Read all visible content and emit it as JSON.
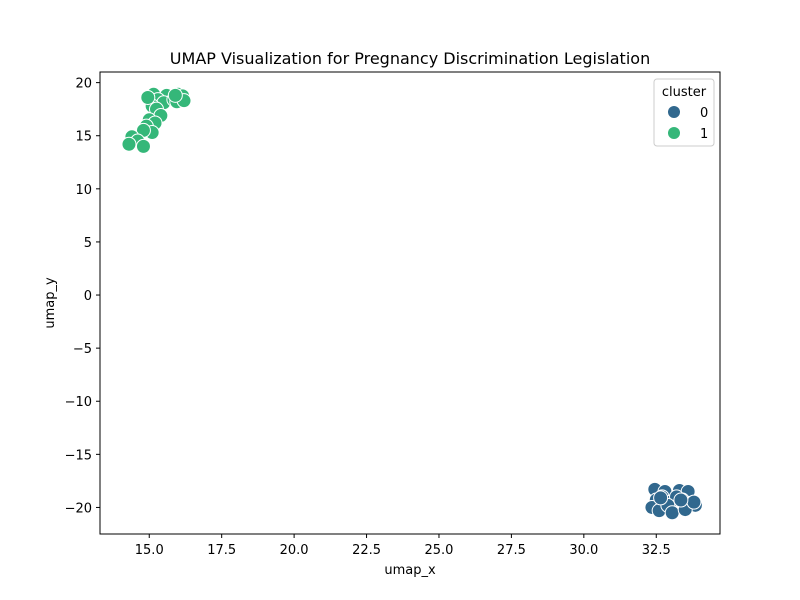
{
  "chart_data": {
    "type": "scatter",
    "title": "UMAP Visualization for Pregnancy Discrimination Legislation",
    "xlabel": "umap_x",
    "ylabel": "umap_y",
    "xlim": [
      13.3,
      34.7
    ],
    "ylim": [
      -22.5,
      21.0
    ],
    "xticks": [
      15.0,
      17.5,
      20.0,
      22.5,
      25.0,
      27.5,
      30.0,
      32.5
    ],
    "xtick_labels": [
      "15.0",
      "17.5",
      "20.0",
      "22.5",
      "25.0",
      "27.5",
      "30.0",
      "32.5"
    ],
    "yticks": [
      -20,
      -15,
      -10,
      -5,
      0,
      5,
      10,
      15,
      20
    ],
    "ytick_labels": [
      "−20",
      "−15",
      "−10",
      "−5",
      "0",
      "5",
      "10",
      "15",
      "20"
    ],
    "grid": false,
    "legend": {
      "title": "cluster",
      "placement": "top-right",
      "entries": [
        {
          "label": "0",
          "color": "#31688e"
        },
        {
          "label": "1",
          "color": "#35b779"
        }
      ]
    },
    "series": [
      {
        "cluster": "0",
        "color": "#31688e",
        "points": [
          [
            32.45,
            -18.3
          ],
          [
            32.8,
            -18.5
          ],
          [
            33.3,
            -18.4
          ],
          [
            33.6,
            -18.5
          ],
          [
            32.5,
            -19.3
          ],
          [
            32.7,
            -19.0
          ],
          [
            33.0,
            -19.5
          ],
          [
            33.2,
            -19.0
          ],
          [
            33.4,
            -19.3
          ],
          [
            33.7,
            -19.6
          ],
          [
            33.85,
            -19.8
          ],
          [
            32.35,
            -20.0
          ],
          [
            32.6,
            -20.3
          ],
          [
            32.9,
            -19.8
          ],
          [
            33.05,
            -20.5
          ],
          [
            33.5,
            -20.2
          ],
          [
            33.8,
            -19.5
          ],
          [
            32.65,
            -19.1
          ],
          [
            33.35,
            -19.3
          ]
        ]
      },
      {
        "cluster": "1",
        "color": "#35b779",
        "points": [
          [
            15.15,
            18.9
          ],
          [
            15.6,
            18.8
          ],
          [
            16.0,
            18.9
          ],
          [
            16.15,
            18.75
          ],
          [
            15.3,
            18.4
          ],
          [
            15.5,
            18.1
          ],
          [
            15.85,
            18.4
          ],
          [
            15.95,
            18.2
          ],
          [
            16.2,
            18.3
          ],
          [
            15.1,
            17.8
          ],
          [
            15.25,
            17.5
          ],
          [
            15.4,
            16.9
          ],
          [
            15.0,
            16.5
          ],
          [
            15.2,
            16.2
          ],
          [
            14.9,
            15.9
          ],
          [
            15.1,
            15.3
          ],
          [
            14.8,
            15.5
          ],
          [
            14.4,
            14.9
          ],
          [
            14.6,
            14.5
          ],
          [
            14.8,
            14.0
          ],
          [
            14.3,
            14.2
          ],
          [
            14.95,
            18.6
          ],
          [
            15.9,
            18.8
          ]
        ]
      }
    ]
  }
}
